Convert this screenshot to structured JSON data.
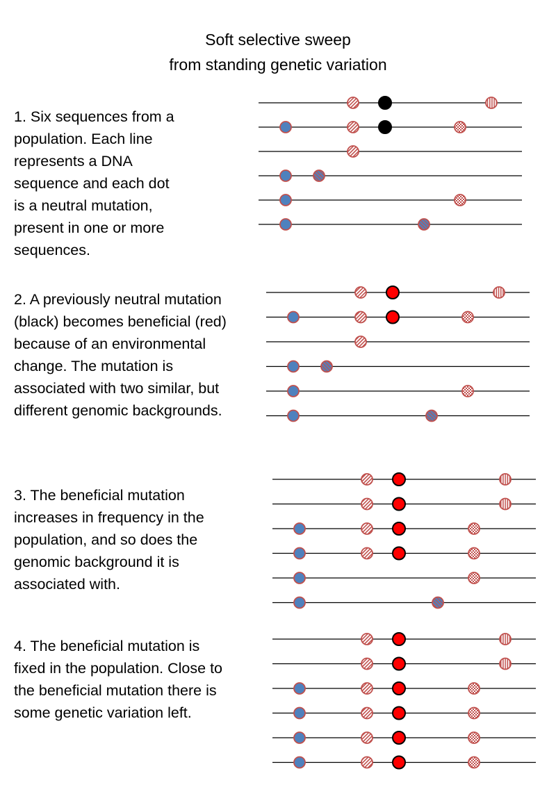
{
  "title": {
    "line1": "Soft selective sweep",
    "line2": "from standing genetic variation"
  },
  "steps": [
    {
      "lines": [
        "1. Six sequences from a",
        "population. Each line",
        "represents a DNA",
        "sequence and each dot",
        "is a neutral mutation,",
        "present in one or more",
        "sequences."
      ],
      "sequences": [
        [
          "hatch-diag",
          "black",
          "hatch-vert"
        ],
        [
          "blue",
          "hatch-diag",
          "black",
          "checker"
        ],
        [
          "hatch-diag"
        ],
        [
          "blue",
          "blue-hatch"
        ],
        [
          "blue",
          "checker"
        ],
        [
          "blue",
          "blue-hatch"
        ]
      ]
    },
    {
      "lines": [
        "2. A previously neutral mutation",
        "(black) becomes beneficial (red)",
        "because of an environmental",
        "change. The mutation is",
        "associated with two similar, but",
        "different genomic backgrounds."
      ],
      "sequences": [
        [
          "hatch-diag",
          "red",
          "hatch-vert"
        ],
        [
          "blue",
          "hatch-diag",
          "red",
          "checker"
        ],
        [
          "hatch-diag"
        ],
        [
          "blue",
          "blue-hatch"
        ],
        [
          "blue",
          "checker"
        ],
        [
          "blue",
          "blue-hatch"
        ]
      ]
    },
    {
      "lines": [
        "3. The beneficial mutation",
        "increases in frequency in the",
        "population, and so does the",
        "genomic background it is",
        "associated with."
      ],
      "sequences": [
        [
          "hatch-diag",
          "red",
          "hatch-vert"
        ],
        [
          "hatch-diag",
          "red",
          "hatch-vert"
        ],
        [
          "blue",
          "hatch-diag",
          "red",
          "checker"
        ],
        [
          "blue",
          "hatch-diag",
          "red",
          "checker"
        ],
        [
          "blue",
          "checker"
        ],
        [
          "blue",
          "blue-hatch"
        ]
      ]
    },
    {
      "lines": [
        "4. The beneficial mutation is",
        "fixed in the population. Close to",
        "the beneficial mutation there is",
        "some genetic variation left."
      ],
      "sequences": [
        [
          "hatch-diag",
          "red",
          "hatch-vert"
        ],
        [
          "hatch-diag",
          "red",
          "hatch-vert"
        ],
        [
          "blue",
          "hatch-diag",
          "red",
          "checker"
        ],
        [
          "blue",
          "hatch-diag",
          "red",
          "checker"
        ],
        [
          "blue",
          "hatch-diag",
          "red",
          "checker"
        ],
        [
          "blue",
          "hatch-diag",
          "red",
          "checker"
        ]
      ]
    }
  ],
  "colors": {
    "neutral_outline": "#c0504d",
    "blue_fill": "#4f81bd",
    "beneficial": "#ff0000",
    "previously_neutral": "#000000",
    "line": "#000000"
  }
}
